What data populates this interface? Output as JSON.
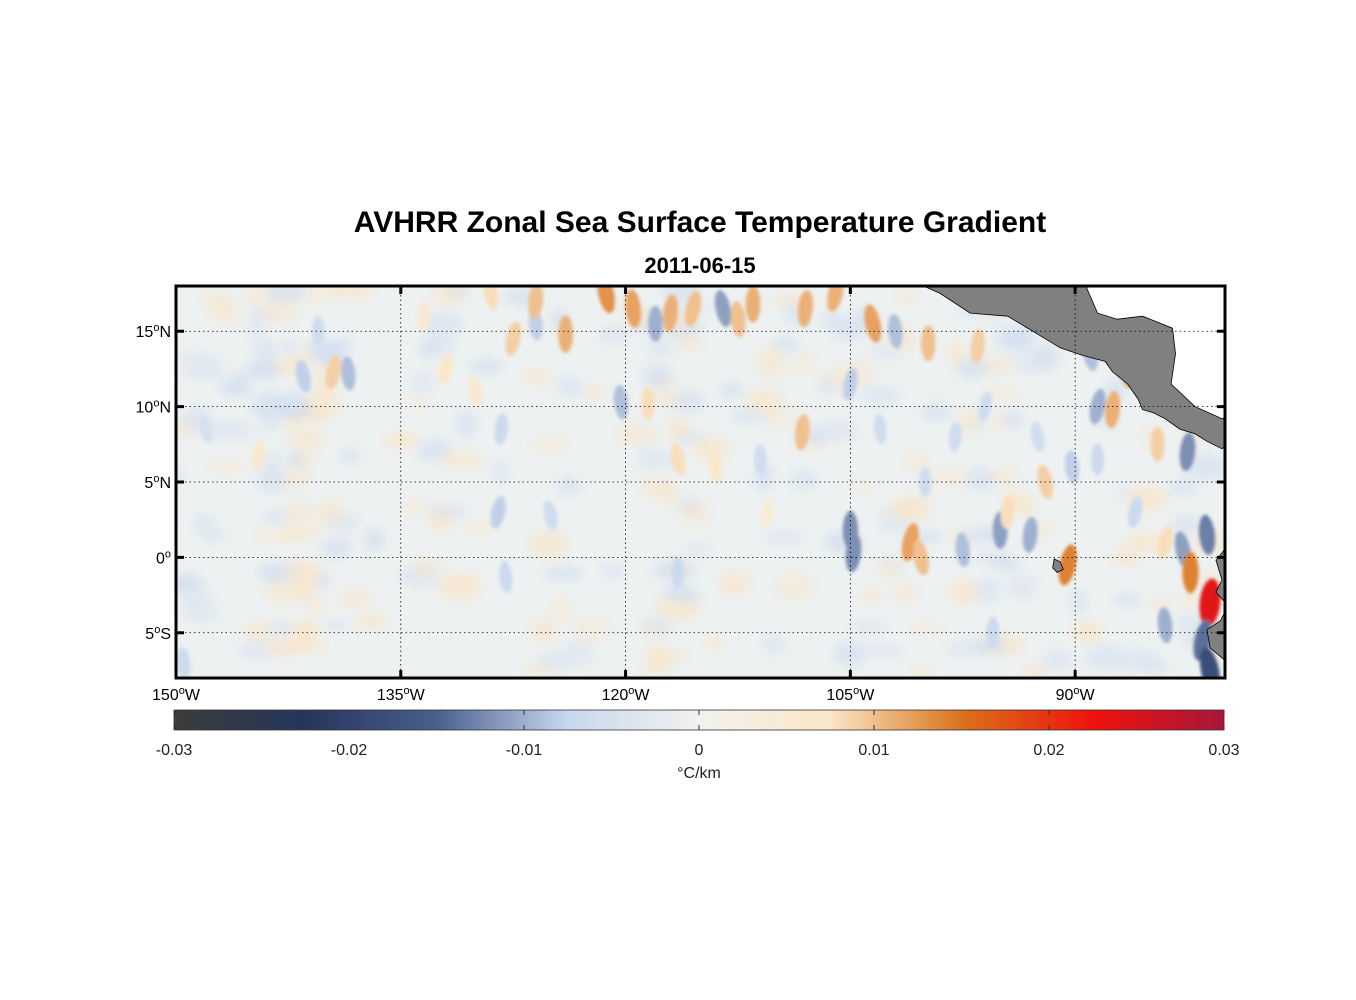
{
  "chart_data": {
    "type": "heatmap",
    "title": "AVHRR Zonal Sea Surface Temperature Gradient",
    "subtitle": "2011-06-15",
    "x_range": [
      -150,
      -80
    ],
    "y_range": [
      -8,
      18
    ],
    "x_ticks": [
      {
        "value": -150,
        "label": "150",
        "suffix": "W"
      },
      {
        "value": -135,
        "label": "135",
        "suffix": "W"
      },
      {
        "value": -120,
        "label": "120",
        "suffix": "W"
      },
      {
        "value": -105,
        "label": "105",
        "suffix": "W"
      },
      {
        "value": -90,
        "label": "90",
        "suffix": "W"
      }
    ],
    "y_ticks": [
      {
        "value": 15,
        "label": "15",
        "suffix": "N"
      },
      {
        "value": 10,
        "label": "10",
        "suffix": "N"
      },
      {
        "value": 5,
        "label": "5",
        "suffix": "N"
      },
      {
        "value": 0,
        "label": "0",
        "suffix": ""
      },
      {
        "value": -5,
        "label": "5",
        "suffix": "S"
      }
    ],
    "grid": true,
    "colorbar": {
      "range": [
        -0.03,
        0.03
      ],
      "ticks": [
        {
          "value": -0.03,
          "label": "-0.03"
        },
        {
          "value": -0.02,
          "label": "-0.02"
        },
        {
          "value": -0.01,
          "label": "-0.01"
        },
        {
          "value": 0,
          "label": "0"
        },
        {
          "value": 0.01,
          "label": "0.01"
        },
        {
          "value": 0.02,
          "label": "0.02"
        },
        {
          "value": 0.03,
          "label": "0.03"
        }
      ],
      "label": "°C/km",
      "colors": [
        "#3c3c3c",
        "#25355c",
        "#4a5f8e",
        "#c8d8ee",
        "#f2f2ee",
        "#fbe6c8",
        "#d9731a",
        "#f0120e",
        "#a8163a"
      ]
    },
    "land_color": "#808080",
    "features": [
      {
        "lon": -121.3,
        "lat": 17.5,
        "value": 0.013
      },
      {
        "lon": -119.5,
        "lat": 16.5,
        "value": 0.012
      },
      {
        "lon": -118.0,
        "lat": 15.5,
        "value": -0.01
      },
      {
        "lon": -117.0,
        "lat": 16.2,
        "value": 0.011
      },
      {
        "lon": -115.5,
        "lat": 16.5,
        "value": 0.01
      },
      {
        "lon": -113.5,
        "lat": 16.5,
        "value": -0.011
      },
      {
        "lon": -112.5,
        "lat": 15.8,
        "value": 0.01
      },
      {
        "lon": -111.5,
        "lat": 16.8,
        "value": 0.011
      },
      {
        "lon": -108.0,
        "lat": 16.5,
        "value": 0.011
      },
      {
        "lon": -106.0,
        "lat": 17.5,
        "value": 0.011
      },
      {
        "lon": -103.5,
        "lat": 15.5,
        "value": 0.012
      },
      {
        "lon": -102.0,
        "lat": 15.0,
        "value": -0.009
      },
      {
        "lon": -99.8,
        "lat": 14.2,
        "value": 0.01
      },
      {
        "lon": -96.5,
        "lat": 14.0,
        "value": 0.009
      },
      {
        "lon": -127.5,
        "lat": 14.5,
        "value": 0.009
      },
      {
        "lon": -129.0,
        "lat": 17.5,
        "value": 0.008
      },
      {
        "lon": -126.0,
        "lat": 15.5,
        "value": -0.008
      },
      {
        "lon": -124.0,
        "lat": 14.8,
        "value": 0.011
      },
      {
        "lon": -126.0,
        "lat": 17.0,
        "value": 0.01
      },
      {
        "lon": -139.5,
        "lat": 12.3,
        "value": 0.009
      },
      {
        "lon": -141.5,
        "lat": 12.0,
        "value": -0.008
      },
      {
        "lon": -138.5,
        "lat": 12.2,
        "value": -0.009
      },
      {
        "lon": -140.5,
        "lat": 15.0,
        "value": -0.006
      },
      {
        "lon": -133.5,
        "lat": 16.0,
        "value": 0.006
      },
      {
        "lon": -132.0,
        "lat": 12.5,
        "value": 0.007
      },
      {
        "lon": -130.0,
        "lat": 11.0,
        "value": 0.006
      },
      {
        "lon": -120.3,
        "lat": 10.3,
        "value": -0.009
      },
      {
        "lon": -118.5,
        "lat": 10.2,
        "value": 0.008
      },
      {
        "lon": -108.2,
        "lat": 8.3,
        "value": 0.01
      },
      {
        "lon": -105.0,
        "lat": 11.5,
        "value": -0.008
      },
      {
        "lon": -116.5,
        "lat": 6.5,
        "value": 0.008
      },
      {
        "lon": -114.0,
        "lat": 6.0,
        "value": 0.007
      },
      {
        "lon": -111.0,
        "lat": 6.5,
        "value": -0.006
      },
      {
        "lon": -128.3,
        "lat": 8.5,
        "value": -0.007
      },
      {
        "lon": -128.5,
        "lat": 3.0,
        "value": -0.008
      },
      {
        "lon": -125.0,
        "lat": 2.8,
        "value": -0.006
      },
      {
        "lon": -128.0,
        "lat": -1.3,
        "value": -0.007
      },
      {
        "lon": -116.5,
        "lat": -1.0,
        "value": -0.007
      },
      {
        "lon": -110.5,
        "lat": 3.0,
        "value": 0.005
      },
      {
        "lon": -144.5,
        "lat": 6.8,
        "value": 0.006
      },
      {
        "lon": -148.0,
        "lat": 8.5,
        "value": -0.005
      },
      {
        "lon": -149.5,
        "lat": -7.0,
        "value": -0.007
      },
      {
        "lon": -105.0,
        "lat": 1.8,
        "value": -0.012
      },
      {
        "lon": -104.8,
        "lat": 0.3,
        "value": -0.012
      },
      {
        "lon": -101.0,
        "lat": 1.0,
        "value": 0.012
      },
      {
        "lon": -100.3,
        "lat": 0.0,
        "value": 0.01
      },
      {
        "lon": -97.5,
        "lat": 0.5,
        "value": -0.009
      },
      {
        "lon": -95.0,
        "lat": 1.8,
        "value": -0.011
      },
      {
        "lon": -93.0,
        "lat": 1.5,
        "value": -0.01
      },
      {
        "lon": -90.5,
        "lat": -0.5,
        "value": 0.014
      },
      {
        "lon": -92.0,
        "lat": 5.0,
        "value": 0.009
      },
      {
        "lon": -90.2,
        "lat": 6.0,
        "value": -0.008
      },
      {
        "lon": -88.5,
        "lat": 6.5,
        "value": -0.007
      },
      {
        "lon": -87.5,
        "lat": 9.8,
        "value": 0.011
      },
      {
        "lon": -88.5,
        "lat": 10.0,
        "value": -0.01
      },
      {
        "lon": -89.0,
        "lat": 13.5,
        "value": -0.009
      },
      {
        "lon": -86.5,
        "lat": 12.5,
        "value": 0.012
      },
      {
        "lon": -84.5,
        "lat": 7.5,
        "value": 0.009
      },
      {
        "lon": -82.5,
        "lat": 7.0,
        "value": -0.012
      },
      {
        "lon": -84.0,
        "lat": 1.0,
        "value": 0.008
      },
      {
        "lon": -82.8,
        "lat": 0.5,
        "value": -0.011
      },
      {
        "lon": -81.2,
        "lat": 1.5,
        "value": -0.013
      },
      {
        "lon": -82.3,
        "lat": -1.0,
        "value": 0.014
      },
      {
        "lon": -81.0,
        "lat": -3.0,
        "value": 0.024
      },
      {
        "lon": -81.5,
        "lat": -5.5,
        "value": -0.014
      },
      {
        "lon": -81.0,
        "lat": -7.5,
        "value": -0.018
      },
      {
        "lon": -84.0,
        "lat": -4.5,
        "value": -0.01
      },
      {
        "lon": -95.5,
        "lat": -5.0,
        "value": -0.007
      },
      {
        "lon": -98.0,
        "lat": 8.0,
        "value": -0.006
      },
      {
        "lon": -96.0,
        "lat": 10.0,
        "value": -0.006
      },
      {
        "lon": -92.5,
        "lat": 8.0,
        "value": -0.006
      },
      {
        "lon": -103.0,
        "lat": 8.5,
        "value": -0.006
      },
      {
        "lon": -100.0,
        "lat": 5.0,
        "value": -0.006
      },
      {
        "lon": -94.5,
        "lat": 3.0,
        "value": 0.008
      },
      {
        "lon": -86.0,
        "lat": 3.0,
        "value": -0.007
      }
    ]
  }
}
